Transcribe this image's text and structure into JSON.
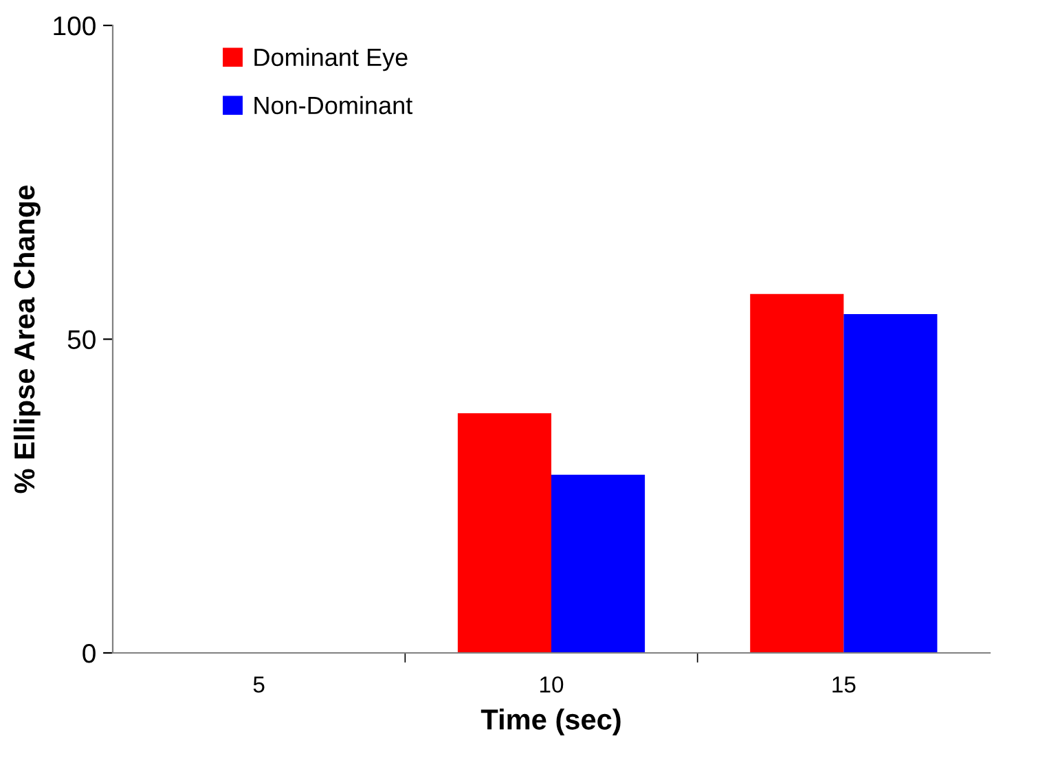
{
  "chart_data": {
    "type": "bar",
    "xlabel": "Time (sec)",
    "ylabel": "% Ellipse Area Change",
    "categories": [
      "5",
      "10",
      "15"
    ],
    "series": [
      {
        "name": "Dominant Eye",
        "color": "#ff0000",
        "values": [
          0,
          38.2,
          57.2
        ]
      },
      {
        "name": "Non-Dominant",
        "color": "#0000ff",
        "values": [
          0,
          28.4,
          54.0
        ]
      }
    ],
    "ylim": [
      0,
      100
    ],
    "yticks": [
      0,
      50,
      100
    ],
    "grid": false,
    "legend": "top left"
  }
}
